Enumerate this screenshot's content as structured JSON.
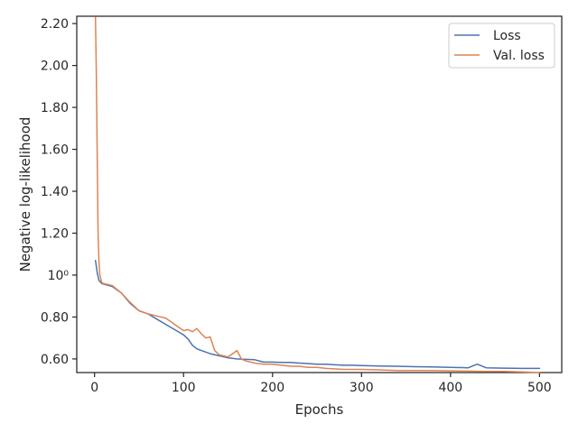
{
  "chart_data": {
    "type": "line",
    "title": "",
    "xlabel": "Epochs",
    "ylabel": "Negative log-likelihood",
    "xlim": [
      -20,
      525
    ],
    "ylim": [
      0.535,
      2.235
    ],
    "x_ticks": [
      {
        "value": 0,
        "label": "0"
      },
      {
        "value": 100,
        "label": "100"
      },
      {
        "value": 200,
        "label": "200"
      },
      {
        "value": 300,
        "label": "300"
      },
      {
        "value": 400,
        "label": "400"
      },
      {
        "value": 500,
        "label": "500"
      }
    ],
    "y_ticks": [
      {
        "value": 0.6,
        "label": "0.60"
      },
      {
        "value": 0.8,
        "label": "0.80"
      },
      {
        "value": 1.0,
        "label": "10⁰"
      },
      {
        "value": 1.2,
        "label": "1.20"
      },
      {
        "value": 1.4,
        "label": "1.40"
      },
      {
        "value": 1.6,
        "label": "1.60"
      },
      {
        "value": 1.8,
        "label": "1.80"
      },
      {
        "value": 2.0,
        "label": "2.00"
      },
      {
        "value": 2.2,
        "label": "2.20"
      }
    ],
    "grid": false,
    "legend_position": "top-right",
    "series": [
      {
        "name": "Loss",
        "color": "#4c72b0",
        "x": [
          1,
          3,
          5,
          8,
          12,
          20,
          30,
          40,
          50,
          60,
          70,
          80,
          90,
          100,
          105,
          110,
          115,
          120,
          130,
          140,
          150,
          160,
          170,
          180,
          190,
          200,
          210,
          220,
          230,
          240,
          250,
          260,
          270,
          280,
          290,
          300,
          320,
          340,
          360,
          380,
          400,
          420,
          430,
          440,
          460,
          480,
          500
        ],
        "y": [
          1.07,
          1.01,
          0.975,
          0.96,
          0.955,
          0.945,
          0.915,
          0.865,
          0.83,
          0.815,
          0.79,
          0.765,
          0.74,
          0.715,
          0.695,
          0.665,
          0.648,
          0.64,
          0.625,
          0.615,
          0.605,
          0.6,
          0.598,
          0.596,
          0.585,
          0.585,
          0.583,
          0.583,
          0.58,
          0.578,
          0.575,
          0.575,
          0.572,
          0.57,
          0.57,
          0.568,
          0.566,
          0.565,
          0.563,
          0.562,
          0.56,
          0.558,
          0.575,
          0.558,
          0.556,
          0.555,
          0.555
        ]
      },
      {
        "name": "Val. loss",
        "color": "#dd8452",
        "x": [
          1,
          2,
          3,
          4,
          5,
          6,
          8,
          10,
          15,
          20,
          30,
          40,
          50,
          60,
          70,
          80,
          90,
          100,
          105,
          110,
          115,
          120,
          125,
          130,
          135,
          140,
          150,
          160,
          165,
          170,
          180,
          190,
          200,
          210,
          220,
          230,
          240,
          250,
          260,
          280,
          300,
          320,
          340,
          360,
          380,
          400,
          420,
          440,
          460,
          480,
          500
        ],
        "y": [
          2.23,
          1.95,
          1.55,
          1.2,
          1.06,
          1.0,
          0.965,
          0.96,
          0.955,
          0.95,
          0.915,
          0.87,
          0.83,
          0.815,
          0.805,
          0.795,
          0.765,
          0.735,
          0.74,
          0.73,
          0.745,
          0.72,
          0.7,
          0.705,
          0.64,
          0.62,
          0.61,
          0.64,
          0.6,
          0.59,
          0.58,
          0.575,
          0.575,
          0.57,
          0.565,
          0.565,
          0.56,
          0.56,
          0.555,
          0.55,
          0.55,
          0.548,
          0.545,
          0.545,
          0.545,
          0.543,
          0.542,
          0.54,
          0.54,
          0.538,
          0.535
        ]
      }
    ]
  }
}
